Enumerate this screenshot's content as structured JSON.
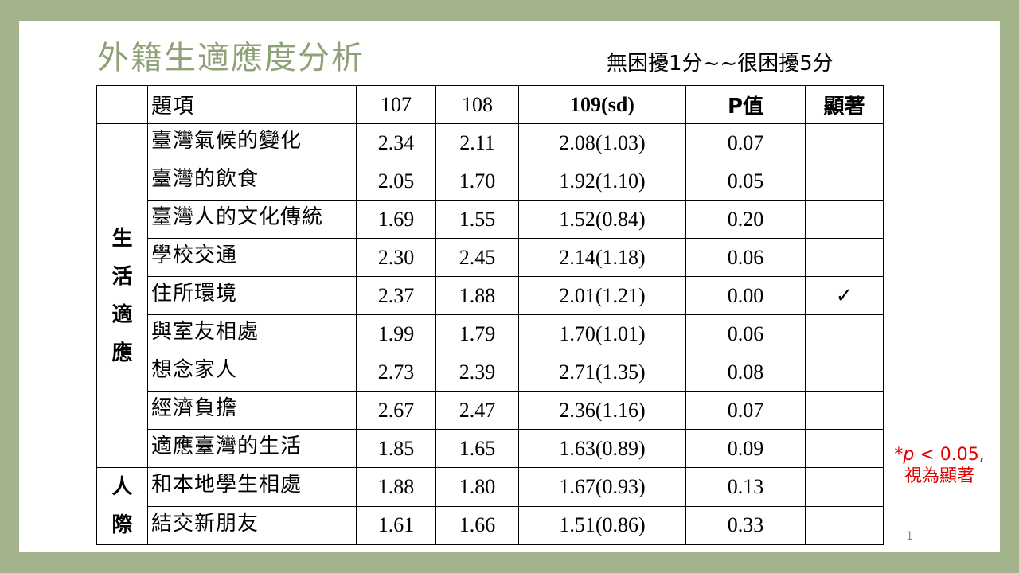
{
  "title": "外籍生適應度分析",
  "scale_note": "無困擾1分~~很困擾5分",
  "headers": [
    "",
    "題項",
    "107",
    "108",
    "109(sd)",
    "P值",
    "顯著"
  ],
  "groups": [
    {
      "chars": [
        "生",
        "活",
        "適",
        "應"
      ]
    },
    {
      "chars": [
        "人",
        "際"
      ]
    }
  ],
  "rows": [
    {
      "item": "臺灣氣候的變化",
      "y107": "2.34",
      "y108": "2.11",
      "y109": "2.08(1.03)",
      "p": "0.07",
      "sig": ""
    },
    {
      "item": "臺灣的飲食",
      "y107": "2.05",
      "y108": "1.70",
      "y109": "1.92(1.10)",
      "p": "0.05",
      "sig": ""
    },
    {
      "item": "臺灣人的文化傳統",
      "y107": "1.69",
      "y108": "1.55",
      "y109": "1.52(0.84)",
      "p": "0.20",
      "sig": ""
    },
    {
      "item": "學校交通",
      "y107": "2.30",
      "y108": "2.45",
      "y109": "2.14(1.18)",
      "p": "0.06",
      "sig": ""
    },
    {
      "item": "住所環境",
      "y107": "2.37",
      "y108": "1.88",
      "y109": "2.01(1.21)",
      "p": "0.00",
      "sig": "✓"
    },
    {
      "item": "與室友相處",
      "y107": "1.99",
      "y108": "1.79",
      "y109": "1.70(1.01)",
      "p": "0.06",
      "sig": ""
    },
    {
      "item": "想念家人",
      "y107": "2.73",
      "y108": "2.39",
      "y109": "2.71(1.35)",
      "p": "0.08",
      "sig": ""
    },
    {
      "item": "經濟負擔",
      "y107": "2.67",
      "y108": "2.47",
      "y109": "2.36(1.16)",
      "p": "0.07",
      "sig": ""
    },
    {
      "item": "適應臺灣的生活",
      "y107": "1.85",
      "y108": "1.65",
      "y109": "1.63(0.89)",
      "p": "0.09",
      "sig": ""
    },
    {
      "item": "和本地學生相處",
      "y107": "1.88",
      "y108": "1.80",
      "y109": "1.67(0.93)",
      "p": "0.13",
      "sig": ""
    },
    {
      "item": "結交新朋友",
      "y107": "1.61",
      "y108": "1.66",
      "y109": "1.51(0.86)",
      "p": "0.33",
      "sig": ""
    }
  ],
  "significance_note": {
    "prefix": "*",
    "p": "p",
    "rest": " < 0.05,",
    "line2": "視為顯著"
  },
  "page_number": "1",
  "colors": {
    "background": "#a3b38c",
    "title": "#8fa177",
    "check": "#e00000"
  }
}
